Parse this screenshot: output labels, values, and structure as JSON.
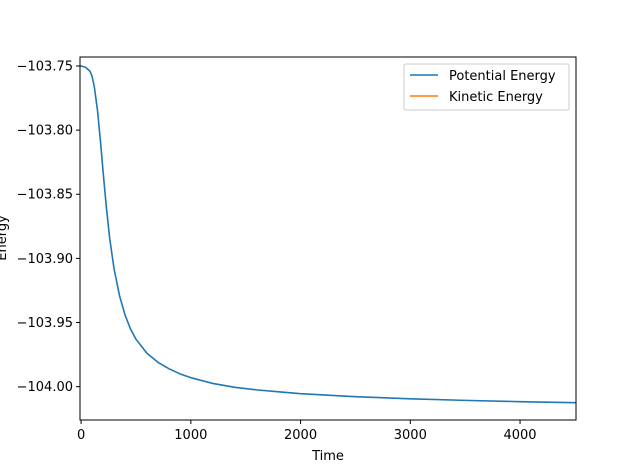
{
  "chart_data": {
    "type": "line",
    "title": "",
    "xlabel": "Time",
    "ylabel": "Energy",
    "xlim": [
      -10,
      4510
    ],
    "ylim": [
      -104.026,
      -103.743
    ],
    "x_ticks": [
      0,
      1000,
      2000,
      3000,
      4000
    ],
    "x_tick_labels": [
      "0",
      "1000",
      "2000",
      "3000",
      "4000"
    ],
    "y_ticks": [
      -103.75,
      -103.8,
      -103.85,
      -103.9,
      -103.95,
      -104.0
    ],
    "y_tick_labels": [
      "−103.75",
      "−103.80",
      "−103.85",
      "−103.90",
      "−103.95",
      "−104.00"
    ],
    "grid": false,
    "legend": {
      "placement": "top-right"
    },
    "series": [
      {
        "name": "Potential Energy",
        "color": "#1f77b4",
        "x": [
          0,
          40,
          80,
          100,
          120,
          150,
          180,
          200,
          230,
          260,
          300,
          350,
          400,
          450,
          500,
          600,
          700,
          800,
          900,
          1000,
          1200,
          1400,
          1600,
          1800,
          2000,
          2500,
          3000,
          3500,
          4000,
          4500
        ],
        "values": [
          -103.75,
          -103.751,
          -103.754,
          -103.758,
          -103.766,
          -103.785,
          -103.812,
          -103.832,
          -103.86,
          -103.884,
          -103.908,
          -103.929,
          -103.944,
          -103.955,
          -103.963,
          -103.974,
          -103.981,
          -103.986,
          -103.99,
          -103.993,
          -103.9975,
          -104.0005,
          -104.0025,
          -104.004,
          -104.0055,
          -104.0078,
          -104.0095,
          -104.0107,
          -104.0117,
          -104.0125
        ]
      },
      {
        "name": "Kinetic Energy",
        "color": "#ff7f0e",
        "x": [],
        "values": []
      }
    ]
  }
}
